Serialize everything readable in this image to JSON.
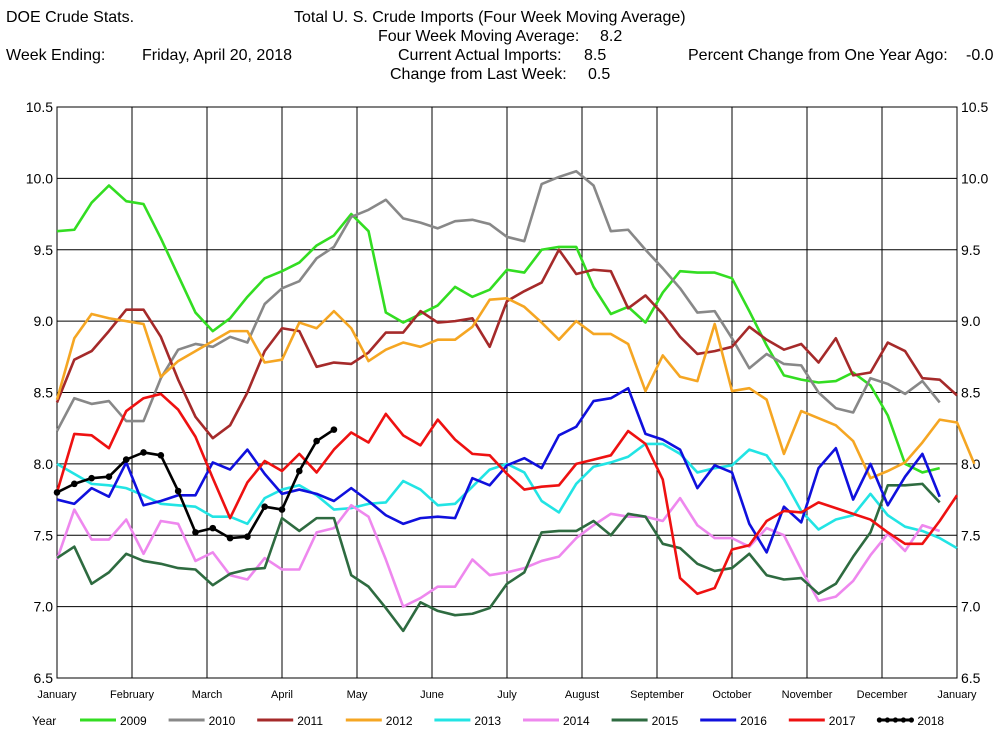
{
  "header": {
    "source": "DOE Crude Stats.",
    "title": "Total U.  S. Crude Imports (Four Week Moving Average)",
    "moving_avg_label": "Four Week Moving Average:",
    "moving_avg_value": "8.2",
    "week_ending_label": "Week Ending:",
    "week_ending_value": "Friday, April 20, 2018",
    "current_label": "Current Actual Imports:",
    "current_value": "8.5",
    "change_week_label": "Change from Last Week:",
    "change_week_value": "0.5",
    "pct_change_label": "Percent Change from One Year Ago:",
    "pct_change_value": "-0.0"
  },
  "legend_title": "Year",
  "chart_data": {
    "type": "line",
    "title": "Total U.  S. Crude Imports (Four Week Moving Average)",
    "x_unit": "week of year",
    "xlim": [
      1,
      53
    ],
    "ylim": [
      6.5,
      10.5
    ],
    "yticks": [
      "6.5",
      "7.0",
      "7.5",
      "8.0",
      "8.5",
      "9.0",
      "9.5",
      "10.0",
      "10.5"
    ],
    "month_labels": [
      "January",
      "February",
      "March",
      "April",
      "May",
      "June",
      "July",
      "August",
      "September",
      "October",
      "November",
      "December",
      "January"
    ],
    "grid": true,
    "legend_position": "bottom",
    "series": [
      {
        "name": "2009",
        "color": "#33dd22",
        "values": [
          9.63,
          9.64,
          9.83,
          9.95,
          9.84,
          9.82,
          9.58,
          9.32,
          9.06,
          8.93,
          9.02,
          9.17,
          9.3,
          9.35,
          9.41,
          9.53,
          9.6,
          9.75,
          9.63,
          9.06,
          8.99,
          9.05,
          9.11,
          9.24,
          9.17,
          9.22,
          9.36,
          9.34,
          9.5,
          9.52,
          9.52,
          9.24,
          9.05,
          9.1,
          8.99,
          9.2,
          9.35,
          9.34,
          9.34,
          9.3,
          9.07,
          8.83,
          8.62,
          8.59,
          8.57,
          8.58,
          8.64,
          8.55,
          8.34,
          8.0,
          7.94,
          7.97
        ]
      },
      {
        "name": "2010",
        "color": "#888888",
        "values": [
          8.23,
          8.46,
          8.42,
          8.44,
          8.3,
          8.3,
          8.6,
          8.8,
          8.84,
          8.82,
          8.89,
          8.85,
          9.12,
          9.23,
          9.28,
          9.44,
          9.52,
          9.73,
          9.78,
          9.85,
          9.72,
          9.69,
          9.65,
          9.7,
          9.71,
          9.68,
          9.59,
          9.56,
          9.96,
          10.01,
          10.05,
          9.95,
          9.63,
          9.64,
          9.5,
          9.37,
          9.23,
          9.06,
          9.07,
          8.88,
          8.67,
          8.77,
          8.7,
          8.69,
          8.5,
          8.39,
          8.36,
          8.6,
          8.56,
          8.49,
          8.58,
          8.43
        ]
      },
      {
        "name": "2011",
        "color": "#a52a2a",
        "values": [
          8.43,
          8.73,
          8.79,
          8.93,
          9.08,
          9.08,
          8.89,
          8.59,
          8.33,
          8.18,
          8.27,
          8.5,
          8.79,
          8.95,
          8.93,
          8.68,
          8.71,
          8.7,
          8.78,
          8.92,
          8.92,
          9.07,
          8.99,
          9.0,
          9.02,
          8.82,
          9.14,
          9.21,
          9.27,
          9.5,
          9.33,
          9.36,
          9.35,
          9.09,
          9.18,
          9.05,
          8.89,
          8.77,
          8.79,
          8.82,
          8.96,
          8.87,
          8.8,
          8.84,
          8.71,
          8.88,
          8.62,
          8.64,
          8.85,
          8.79,
          8.6,
          8.59,
          8.48
        ]
      },
      {
        "name": "2012",
        "color": "#f5a623",
        "values": [
          8.45,
          8.88,
          9.05,
          9.02,
          9.0,
          8.98,
          8.61,
          8.72,
          8.79,
          8.86,
          8.93,
          8.93,
          8.71,
          8.73,
          8.99,
          8.95,
          9.07,
          8.95,
          8.72,
          8.8,
          8.85,
          8.82,
          8.87,
          8.87,
          8.96,
          9.15,
          9.16,
          9.1,
          8.99,
          8.87,
          9.0,
          8.91,
          8.91,
          8.84,
          8.51,
          8.76,
          8.61,
          8.58,
          8.98,
          8.51,
          8.53,
          8.45,
          8.07,
          8.37,
          8.32,
          8.27,
          8.16,
          7.9,
          7.95,
          8.01,
          8.15,
          8.31,
          8.29,
          8.0
        ]
      },
      {
        "name": "2013",
        "color": "#22e4e4",
        "values": [
          8.0,
          7.93,
          7.86,
          7.85,
          7.83,
          7.78,
          7.72,
          7.71,
          7.7,
          7.63,
          7.63,
          7.58,
          7.76,
          7.82,
          7.85,
          7.78,
          7.68,
          7.69,
          7.72,
          7.73,
          7.88,
          7.82,
          7.71,
          7.72,
          7.84,
          7.96,
          8.0,
          7.94,
          7.74,
          7.66,
          7.86,
          7.98,
          8.01,
          8.05,
          8.14,
          8.14,
          8.07,
          7.94,
          7.97,
          7.99,
          8.1,
          8.06,
          7.89,
          7.67,
          7.54,
          7.61,
          7.64,
          7.79,
          7.64,
          7.56,
          7.53,
          7.48,
          7.41
        ]
      },
      {
        "name": "2014",
        "color": "#ee88ee",
        "values": [
          7.33,
          7.68,
          7.47,
          7.47,
          7.61,
          7.37,
          7.6,
          7.58,
          7.32,
          7.38,
          7.22,
          7.19,
          7.34,
          7.26,
          7.26,
          7.52,
          7.55,
          7.71,
          7.63,
          7.33,
          7.0,
          7.06,
          7.14,
          7.14,
          7.33,
          7.22,
          7.24,
          7.27,
          7.32,
          7.35,
          7.48,
          7.57,
          7.65,
          7.63,
          7.63,
          7.6,
          7.76,
          7.57,
          7.48,
          7.48,
          7.42,
          7.55,
          7.5,
          7.26,
          7.04,
          7.07,
          7.18,
          7.36,
          7.51,
          7.39,
          7.57,
          7.53
        ]
      },
      {
        "name": "2015",
        "color": "#2e6b40",
        "values": [
          7.34,
          7.42,
          7.16,
          7.24,
          7.37,
          7.32,
          7.3,
          7.27,
          7.26,
          7.15,
          7.23,
          7.26,
          7.27,
          7.62,
          7.53,
          7.62,
          7.62,
          7.22,
          7.14,
          6.99,
          6.83,
          7.03,
          6.97,
          6.94,
          6.95,
          6.99,
          7.16,
          7.24,
          7.52,
          7.53,
          7.53,
          7.6,
          7.5,
          7.65,
          7.63,
          7.44,
          7.41,
          7.3,
          7.25,
          7.27,
          7.37,
          7.22,
          7.19,
          7.2,
          7.09,
          7.16,
          7.35,
          7.52,
          7.85,
          7.85,
          7.86,
          7.73
        ]
      },
      {
        "name": "2016",
        "color": "#1010dd",
        "values": [
          7.75,
          7.72,
          7.83,
          7.77,
          8.01,
          7.71,
          7.74,
          7.78,
          7.78,
          8.01,
          7.96,
          8.1,
          7.93,
          7.79,
          7.82,
          7.79,
          7.74,
          7.83,
          7.74,
          7.64,
          7.58,
          7.62,
          7.63,
          7.62,
          7.9,
          7.85,
          7.99,
          8.04,
          7.97,
          8.2,
          8.26,
          8.44,
          8.46,
          8.53,
          8.21,
          8.17,
          8.1,
          7.83,
          7.99,
          7.94,
          7.58,
          7.38,
          7.7,
          7.59,
          7.97,
          8.11,
          7.75,
          8.0,
          7.71,
          7.91,
          8.07,
          7.77
        ]
      },
      {
        "name": "2017",
        "color": "#ee1111",
        "values": [
          7.8,
          8.21,
          8.2,
          8.11,
          8.37,
          8.46,
          8.49,
          8.38,
          8.19,
          7.9,
          7.62,
          7.87,
          8.02,
          7.95,
          8.07,
          7.94,
          8.1,
          8.22,
          8.15,
          8.35,
          8.2,
          8.13,
          8.31,
          8.17,
          8.07,
          8.06,
          7.93,
          7.82,
          7.84,
          7.85,
          8.0,
          8.03,
          8.06,
          8.23,
          8.14,
          7.89,
          7.2,
          7.09,
          7.13,
          7.4,
          7.43,
          7.6,
          7.67,
          7.66,
          7.73,
          7.69,
          7.65,
          7.61,
          7.52,
          7.44,
          7.44,
          7.6,
          7.78
        ]
      },
      {
        "name": "2018",
        "color": "#000000",
        "markers": true,
        "values": [
          7.8,
          7.86,
          7.9,
          7.91,
          8.03,
          8.08,
          8.06,
          7.81,
          7.52,
          7.55,
          7.48,
          7.49,
          7.7,
          7.68,
          7.95,
          8.16,
          8.24
        ]
      }
    ]
  }
}
